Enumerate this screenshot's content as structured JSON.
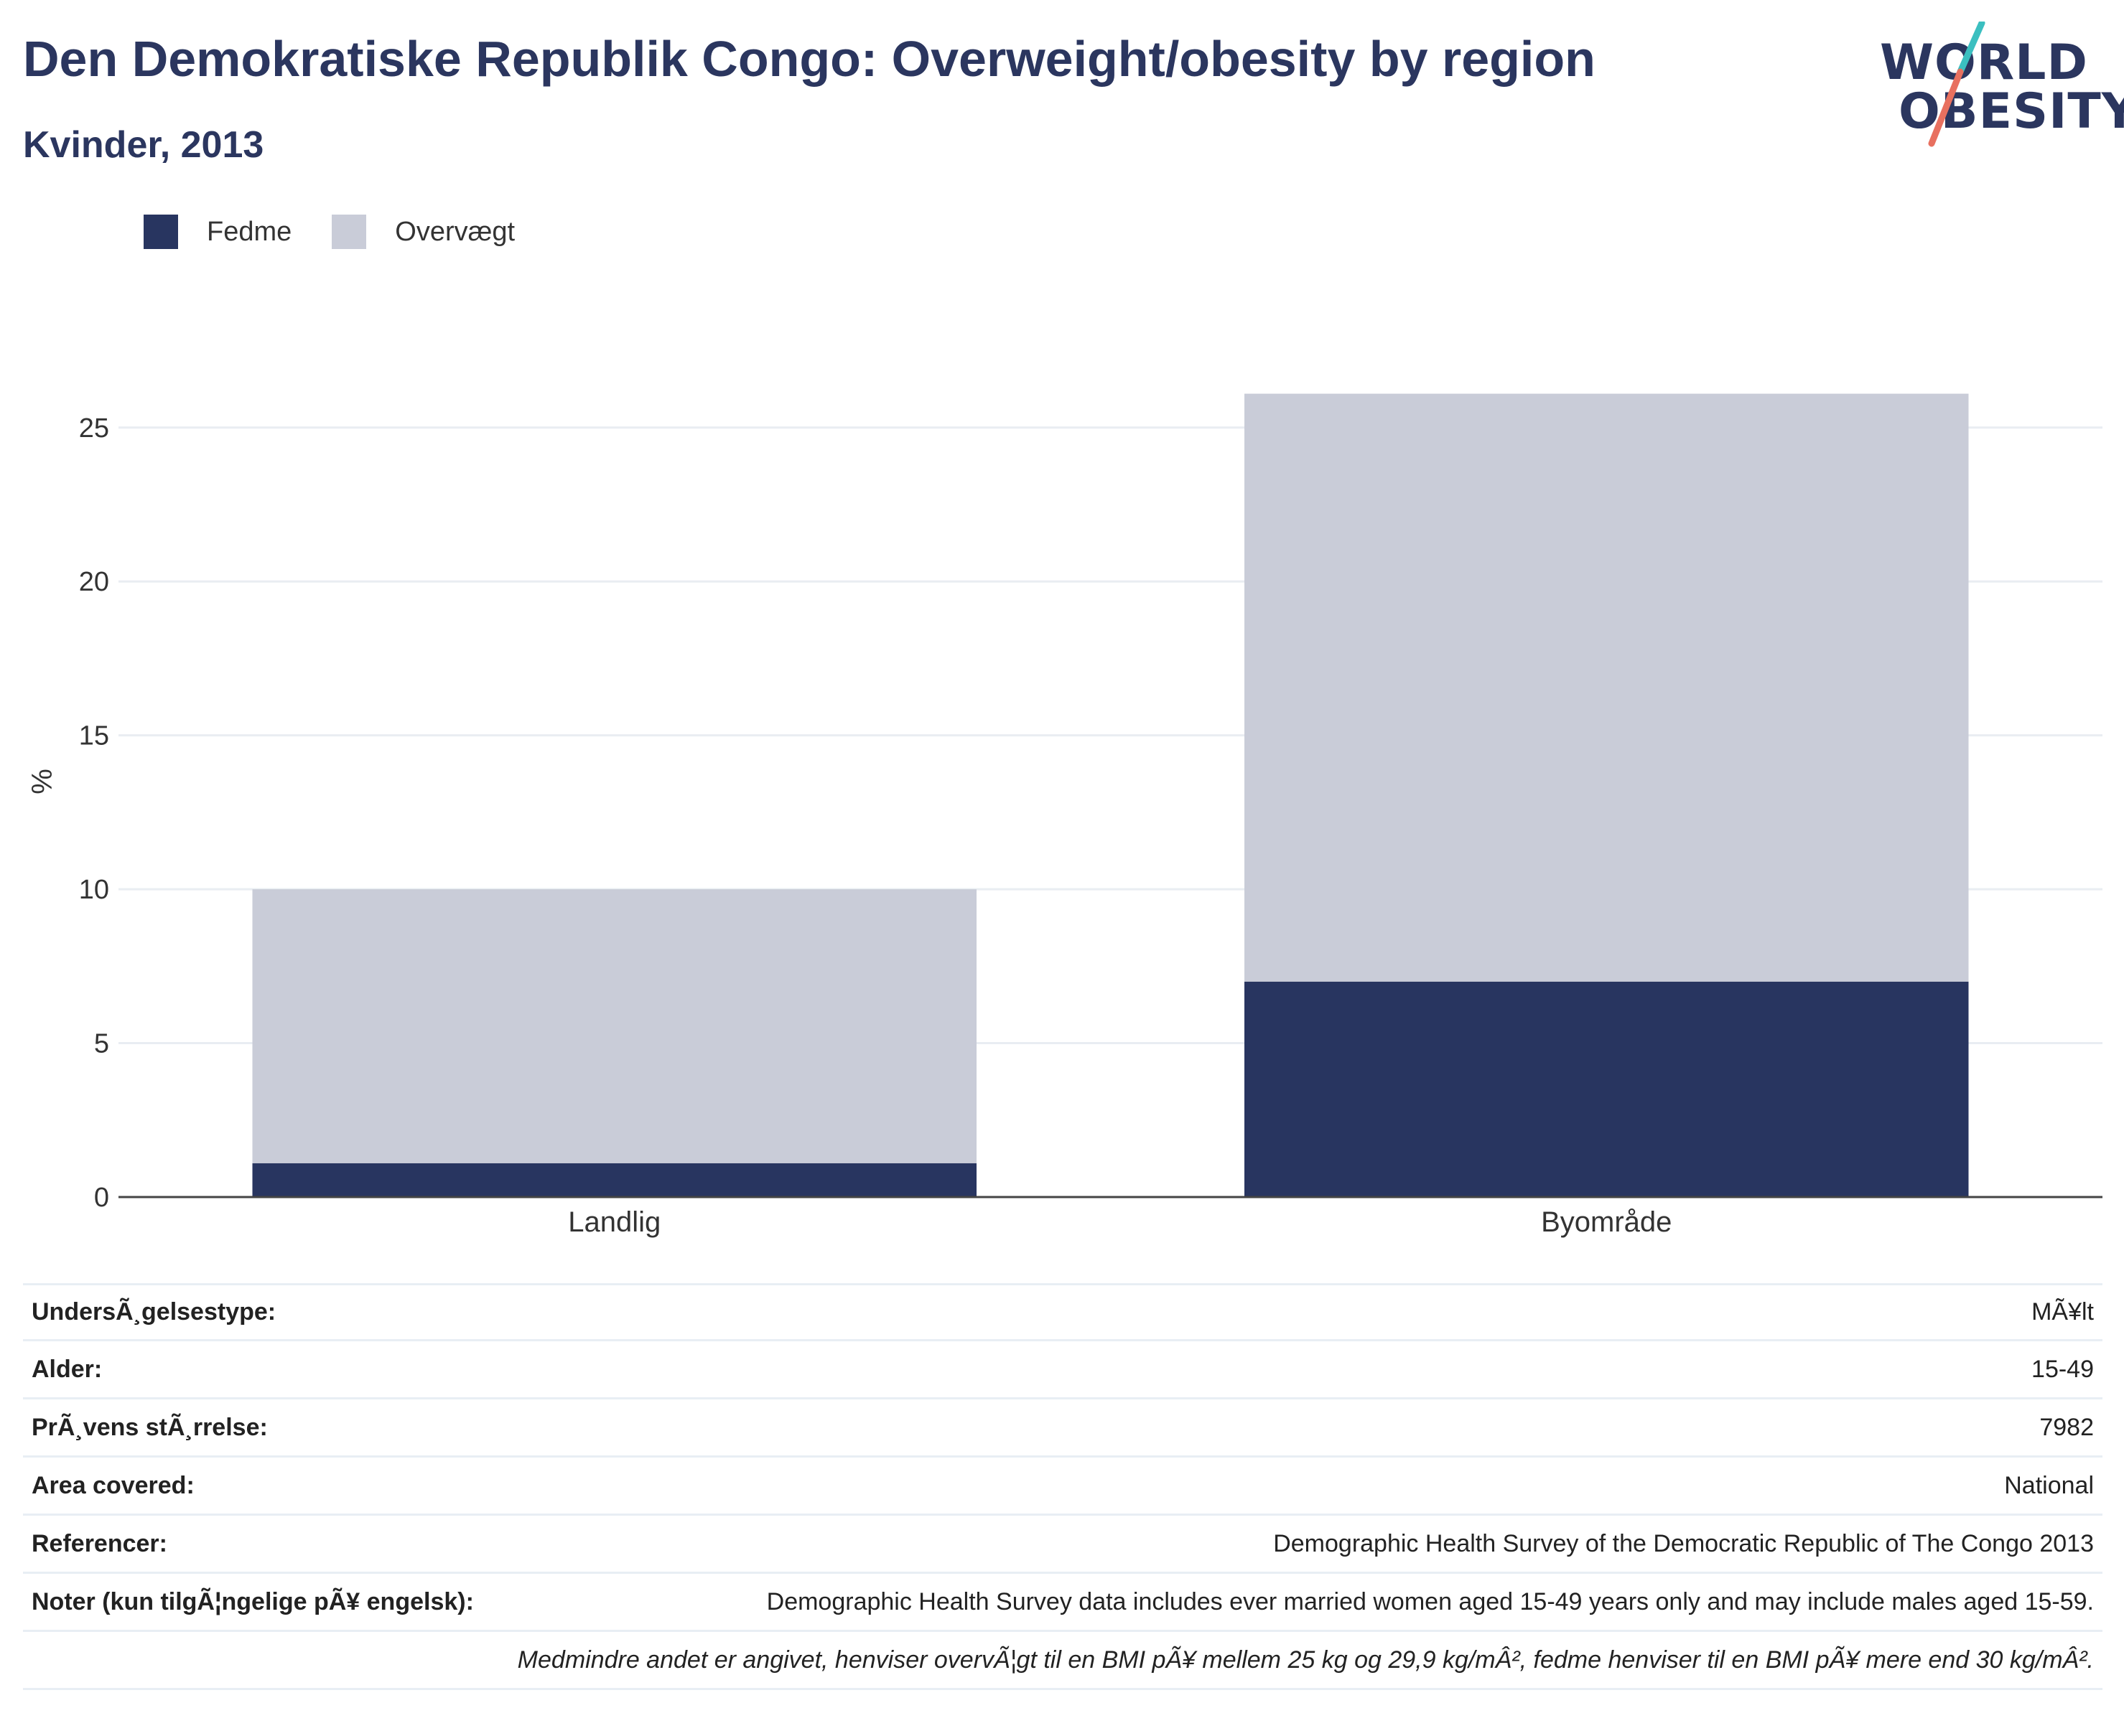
{
  "header": {
    "title": "Den Demokratiske Republik Congo: Overweight/obesity by region",
    "subtitle": "Kvinder, 2013"
  },
  "logo": {
    "line1": "WORLD",
    "line2": "OBESITY",
    "colors": {
      "text": "#2b365f",
      "slash_top": "#3bbfc0",
      "slash_bottom": "#e8705f"
    }
  },
  "legend": [
    {
      "label": "Fedme",
      "color": "#283560"
    },
    {
      "label": "Overvægt",
      "color": "#c9ccd8"
    }
  ],
  "chart_data": {
    "type": "bar",
    "stacked": true,
    "categories": [
      "Landlig",
      "Byområde"
    ],
    "series": [
      {
        "name": "Fedme",
        "values": [
          1.1,
          7.0
        ],
        "color": "#283560"
      },
      {
        "name": "Overvægt",
        "values": [
          8.9,
          19.1
        ],
        "color": "#c9ccd8"
      }
    ],
    "ylabel": "%",
    "ylim": [
      0,
      27
    ],
    "yticks": [
      0,
      5,
      10,
      15,
      20,
      25
    ],
    "grid": true,
    "legend_position": "top-left"
  },
  "info": [
    {
      "label": "UndersÃ¸gelsestype:",
      "value": "MÃ¥lt"
    },
    {
      "label": "Alder:",
      "value": "15-49"
    },
    {
      "label": "PrÃ¸vens stÃ¸rrelse:",
      "value": "7982"
    },
    {
      "label": "Area covered:",
      "value": "National"
    },
    {
      "label": "Referencer:",
      "value": "Demographic Health Survey of the Democratic Republic of The Congo 2013"
    },
    {
      "label": "Noter (kun tilgÃ¦ngelige pÃ¥ engelsk):",
      "value": "Demographic Health Survey data includes ever married women aged 15-49 years only and may include males aged 15-59."
    }
  ],
  "footnote": "Medmindre andet er angivet, henviser overvÃ¦gt til en BMI pÃ¥ mellem 25 kg og 29,9 kg/mÂ², fedme henviser til en BMI pÃ¥ mere end 30 kg/mÂ²."
}
